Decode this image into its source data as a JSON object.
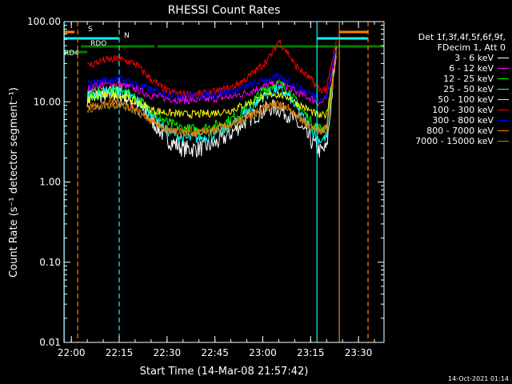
{
  "chart_data": {
    "type": "line",
    "title": "RHESSI Count Rates",
    "xlabel": "Start Time (14-Mar-08 21:57:42)",
    "ylabel": "Count Rate (s⁻¹ detector segment⁻¹)",
    "y_scale": "log",
    "ylim": [
      0.01,
      100
    ],
    "xlim": [
      "21:57:42",
      "23:38:00"
    ],
    "x_ticks": [
      "22:00",
      "22:15",
      "22:30",
      "22:45",
      "23:00",
      "23:15",
      "23:30"
    ],
    "y_ticks": [
      "0.01",
      "0.10",
      "1.00",
      "10.00",
      "100.00"
    ],
    "legend_header": [
      "Det 1f,3f,4f,5f,6f,9f,",
      "FDecim 1, Att 0"
    ],
    "legend_position": "right",
    "x": [
      "22:05",
      "22:10",
      "22:15",
      "22:20",
      "22:25",
      "22:30",
      "22:35",
      "22:40",
      "22:45",
      "22:50",
      "22:55",
      "23:00",
      "23:03",
      "23:05",
      "23:08",
      "23:10",
      "23:15",
      "23:18",
      "23:20",
      "23:23"
    ],
    "series": [
      {
        "name": "3 - 6 keV",
        "color": "#ffffff",
        "values": [
          11,
          12.5,
          12.5,
          10,
          6,
          3.4,
          2.6,
          2.6,
          3.0,
          4.0,
          6,
          7.6,
          8.5,
          8.2,
          7.0,
          5.8,
          3.3,
          2.4,
          2.6,
          40
        ]
      },
      {
        "name": "6 - 12 keV",
        "color": "#ff00ff",
        "values": [
          14.5,
          16.5,
          16.5,
          14.5,
          12,
          11,
          10.5,
          10.5,
          11,
          11.5,
          13,
          15.5,
          16.5,
          16.3,
          15.5,
          13.5,
          11,
          9.5,
          11,
          45
        ]
      },
      {
        "name": "12 - 25 keV",
        "color": "#00ff00",
        "values": [
          12,
          13.5,
          14,
          11.5,
          7.8,
          5.5,
          4.6,
          4.5,
          5.0,
          6.0,
          8.5,
          13.5,
          16,
          17,
          14,
          10.5,
          5.7,
          4.6,
          5.0,
          42
        ]
      },
      {
        "name": "25 - 50 keV",
        "color": "#00ffff",
        "values": [
          11.5,
          13,
          13.5,
          11,
          7,
          4.4,
          3.5,
          3.5,
          3.9,
          5.0,
          7.5,
          11.5,
          13.5,
          14,
          12,
          9,
          4.6,
          3.3,
          3.6,
          40
        ]
      },
      {
        "name": "50 - 100 keV",
        "color": "#ffff00",
        "values": [
          10.5,
          12,
          12.2,
          10.2,
          8,
          7.3,
          7.0,
          7.0,
          7.3,
          7.8,
          9.5,
          11.5,
          12.5,
          12.3,
          11.5,
          10,
          7.6,
          6.6,
          7.0,
          38
        ]
      },
      {
        "name": "100 - 300 keV",
        "color": "#ff0000",
        "values": [
          28,
          33,
          34,
          30,
          19,
          13.5,
          12.5,
          12.5,
          13.2,
          15,
          19.5,
          29,
          40,
          58,
          40,
          29,
          19,
          14,
          14.5,
          55
        ]
      },
      {
        "name": "300 - 800 keV",
        "color": "#0000ff",
        "values": [
          16.5,
          18.5,
          19.5,
          17,
          14,
          12.5,
          12,
          12,
          12.5,
          13.2,
          15.5,
          18.5,
          20,
          20,
          18.5,
          16,
          12.5,
          11,
          11.5,
          48
        ]
      },
      {
        "name": "800 - 7000 keV",
        "color": "#ff8000",
        "values": [
          8.5,
          9.5,
          10,
          8.2,
          6,
          4.5,
          4.2,
          4.2,
          4.5,
          5.2,
          6.5,
          8.3,
          9.2,
          9.4,
          8.5,
          7.3,
          5,
          4.5,
          4.6,
          38
        ]
      },
      {
        "name": "7000 - 15000 keV",
        "color": "#b88a2a",
        "values": [
          8,
          9,
          9.2,
          7.8,
          5.7,
          4.4,
          4,
          4,
          4.3,
          4.9,
          6.2,
          7.8,
          8.7,
          8.8,
          8,
          6.9,
          4.8,
          4.3,
          4.4,
          36
        ]
      }
    ],
    "flags": [
      {
        "label": "S",
        "color": "#ff8000",
        "segments": [
          [
            "21:57:42",
            "22:01"
          ],
          [
            "23:24",
            "23:33"
          ]
        ]
      },
      {
        "label": "N",
        "color": "#00ffff",
        "segments": [
          [
            "21:57:42",
            "22:15"
          ],
          [
            "23:17",
            "23:33"
          ]
        ]
      },
      {
        "label": "RDO",
        "color": "#008000",
        "segments": [
          [
            "22:03",
            "22:26"
          ],
          [
            "22:27",
            "22:45"
          ],
          [
            "22:45",
            "23:15"
          ],
          [
            "23:15",
            "23:38"
          ]
        ]
      },
      {
        "label": "RD4",
        "color": "#008000",
        "segments": [
          [
            "21:57:42",
            "22:05"
          ]
        ]
      }
    ],
    "vlines": [
      {
        "t": "21:57:45",
        "color": "#00ffff",
        "style": "solid"
      },
      {
        "t": "22:02",
        "color": "#ff8000",
        "style": "dash"
      },
      {
        "t": "22:15",
        "color": "#00ffff",
        "style": "dash"
      },
      {
        "t": "23:17",
        "color": "#00ffff",
        "style": "solid"
      },
      {
        "t": "23:24",
        "color": "#ff8000",
        "style": "solid"
      },
      {
        "t": "23:33",
        "color": "#ff8000",
        "style": "dash"
      }
    ]
  },
  "footer": {
    "timestamp": "14-Oct-2021 01:14"
  }
}
